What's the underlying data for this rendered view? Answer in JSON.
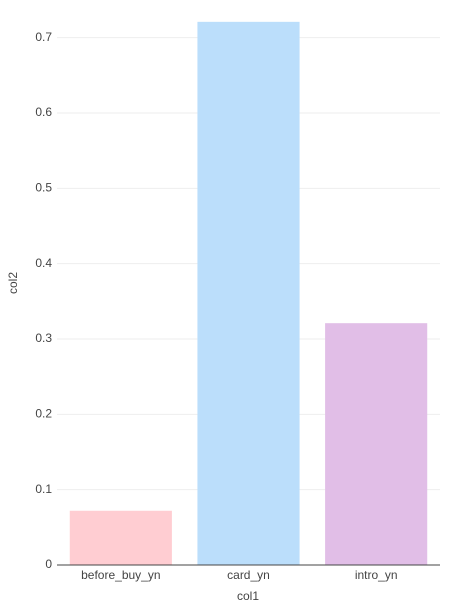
{
  "chart_data": {
    "type": "bar",
    "x_label": "col1",
    "y_label": "col2",
    "categories": [
      "before_buy_yn",
      "card_yn",
      "intro_yn"
    ],
    "values": [
      0.072,
      0.721,
      0.321
    ],
    "colors": [
      "#ffcdd2",
      "#bbdefb",
      "#e1bee7"
    ],
    "ylim": [
      0,
      0.75
    ],
    "yticks": [
      0,
      0.1,
      0.2,
      0.3,
      0.4,
      0.5,
      0.6,
      0.7
    ],
    "grid": true
  }
}
